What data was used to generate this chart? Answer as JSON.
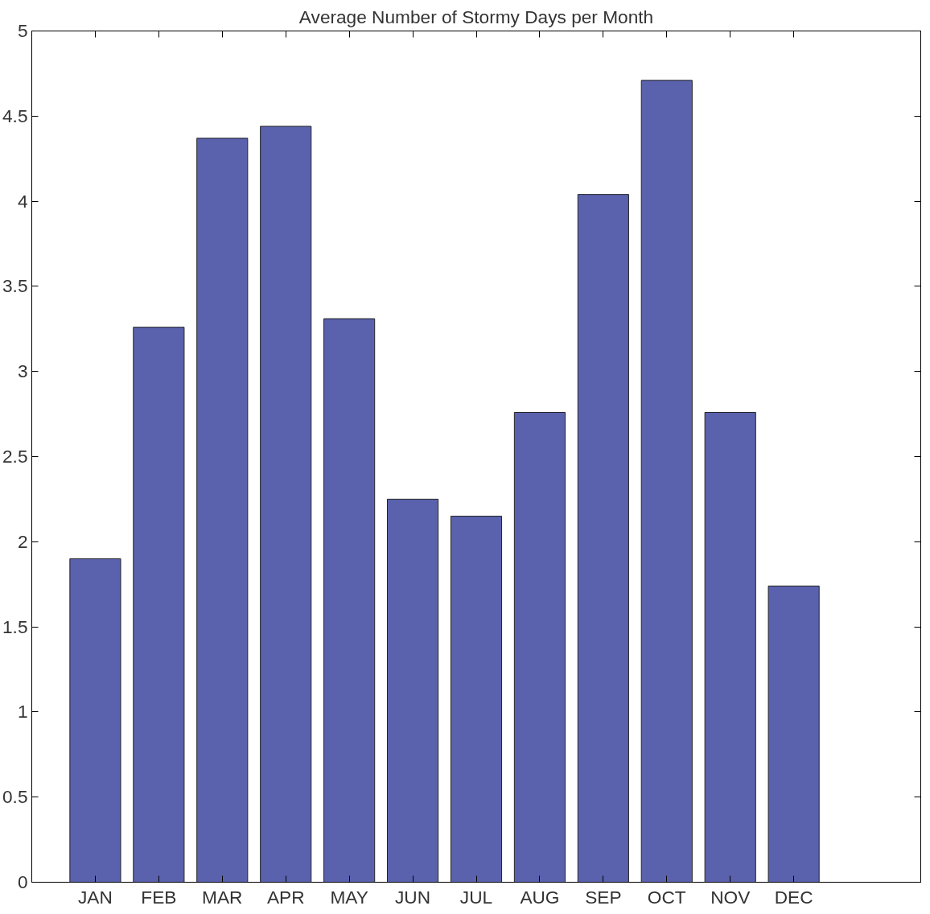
{
  "chart_data": {
    "type": "bar",
    "title": "Average Number of Stormy Days per Month",
    "categories": [
      "JAN",
      "FEB",
      "MAR",
      "APR",
      "MAY",
      "JUN",
      "JUL",
      "AUG",
      "SEP",
      "OCT",
      "NOV",
      "DEC"
    ],
    "values": [
      1.9,
      3.26,
      4.37,
      4.44,
      3.31,
      2.25,
      2.15,
      2.76,
      4.04,
      4.71,
      2.76,
      1.74
    ],
    "color": "#5a62ae",
    "ylim": [
      0,
      5
    ],
    "yticks": [
      0,
      0.5,
      1,
      1.5,
      2,
      2.5,
      3,
      3.5,
      4,
      4.5,
      5
    ],
    "grid": false
  }
}
